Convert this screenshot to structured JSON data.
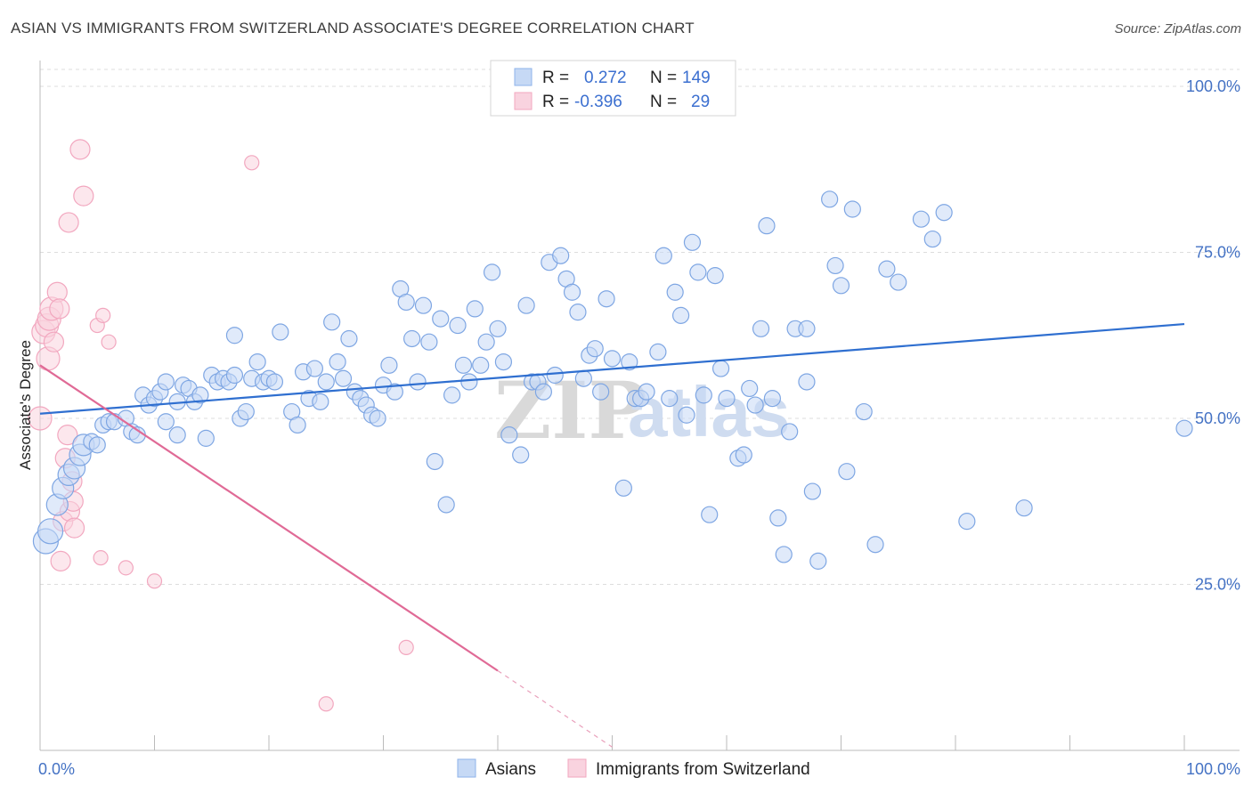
{
  "header": {
    "title": "ASIAN VS IMMIGRANTS FROM SWITZERLAND ASSOCIATE'S DEGREE CORRELATION CHART",
    "source": "Source: ZipAtlas.com"
  },
  "watermark": {
    "zip": "ZIP",
    "atlas": "atlas"
  },
  "legend_top": {
    "rows": [
      {
        "r_label": "R =",
        "r_value": "0.272",
        "n_label": "N =",
        "n_value": "149",
        "color": "#8fb3ea"
      },
      {
        "r_label": "R =",
        "r_value": "-0.396",
        "n_label": "N =",
        "n_value": "29",
        "color": "#f2a7bf"
      }
    ]
  },
  "legend_bottom": {
    "items": [
      {
        "label": "Asians",
        "color": "#8fb3ea"
      },
      {
        "label": "Immigrants from Switzerland",
        "color": "#f2a7bf"
      }
    ]
  },
  "chart_data": {
    "type": "scatter",
    "title": "ASIAN VS IMMIGRANTS FROM SWITZERLAND ASSOCIATE'S DEGREE CORRELATION CHART",
    "xlabel": "",
    "ylabel": "Associate's Degree",
    "xlim": [
      0,
      100
    ],
    "ylim": [
      0,
      100
    ],
    "x_tick_labels": [
      "0.0%",
      "100.0%"
    ],
    "y_tick_labels": [
      "25.0%",
      "50.0%",
      "75.0%",
      "100.0%"
    ],
    "y_ticks": [
      25,
      50,
      75,
      100
    ],
    "grid": true,
    "legend_position": "top-center",
    "series": [
      {
        "name": "Asians",
        "color": "#8fb3ea",
        "trend": {
          "x": [
            0,
            100
          ],
          "y": [
            50.7,
            64.2
          ]
        },
        "points": [
          [
            0.5,
            31.5
          ],
          [
            0.9,
            33
          ],
          [
            1.5,
            37
          ],
          [
            2,
            39.5
          ],
          [
            2.5,
            41.5
          ],
          [
            3,
            42.5
          ],
          [
            3.5,
            44.5
          ],
          [
            3.8,
            46
          ],
          [
            4.5,
            46.5
          ],
          [
            5,
            46
          ],
          [
            5.5,
            49
          ],
          [
            6,
            49.5
          ],
          [
            6.5,
            49.5
          ],
          [
            7.5,
            50
          ],
          [
            8,
            48
          ],
          [
            8.5,
            47.5
          ],
          [
            9,
            53.5
          ],
          [
            9.5,
            52
          ],
          [
            10,
            53
          ],
          [
            10.5,
            54
          ],
          [
            11,
            55.5
          ],
          [
            11,
            49.5
          ],
          [
            12,
            52.5
          ],
          [
            12,
            47.5
          ],
          [
            12.5,
            55
          ],
          [
            13,
            54.5
          ],
          [
            13.5,
            52.5
          ],
          [
            14,
            53.5
          ],
          [
            14.5,
            47
          ],
          [
            15,
            56.5
          ],
          [
            15.5,
            55.5
          ],
          [
            16,
            56
          ],
          [
            16.5,
            55.5
          ],
          [
            17,
            56.5
          ],
          [
            17,
            62.5
          ],
          [
            17.5,
            50
          ],
          [
            18,
            51
          ],
          [
            18.5,
            56
          ],
          [
            19,
            58.5
          ],
          [
            19.5,
            55.5
          ],
          [
            20,
            56
          ],
          [
            20.5,
            55.5
          ],
          [
            21,
            63
          ],
          [
            22,
            51
          ],
          [
            22.5,
            49
          ],
          [
            23,
            57
          ],
          [
            23.5,
            53
          ],
          [
            24,
            57.5
          ],
          [
            24.5,
            52.5
          ],
          [
            25,
            55.5
          ],
          [
            25.5,
            64.5
          ],
          [
            26,
            58.5
          ],
          [
            26.5,
            56
          ],
          [
            27,
            62
          ],
          [
            27.5,
            54
          ],
          [
            28,
            53
          ],
          [
            28.5,
            52
          ],
          [
            29,
            50.5
          ],
          [
            29.5,
            50
          ],
          [
            30,
            55
          ],
          [
            30.5,
            58
          ],
          [
            31,
            54
          ],
          [
            31.5,
            69.5
          ],
          [
            32,
            67.5
          ],
          [
            32.5,
            62
          ],
          [
            33,
            55.5
          ],
          [
            33.5,
            67
          ],
          [
            34,
            61.5
          ],
          [
            34.5,
            43.5
          ],
          [
            35,
            65
          ],
          [
            35.5,
            37
          ],
          [
            36,
            53.5
          ],
          [
            36.5,
            64
          ],
          [
            37,
            58
          ],
          [
            37.5,
            55.5
          ],
          [
            38,
            66.5
          ],
          [
            38.5,
            58
          ],
          [
            39,
            61.5
          ],
          [
            39.5,
            72
          ],
          [
            40,
            63.5
          ],
          [
            40.5,
            58.5
          ],
          [
            41,
            47.5
          ],
          [
            42,
            44.5
          ],
          [
            42.5,
            67
          ],
          [
            43,
            55.5
          ],
          [
            43.5,
            55.5
          ],
          [
            44,
            54
          ],
          [
            44.5,
            73.5
          ],
          [
            45,
            56.5
          ],
          [
            45.5,
            74.5
          ],
          [
            46,
            71
          ],
          [
            46.5,
            69
          ],
          [
            47,
            66
          ],
          [
            47.5,
            56
          ],
          [
            48,
            59.5
          ],
          [
            48.5,
            60.5
          ],
          [
            49,
            54
          ],
          [
            49.5,
            68
          ],
          [
            50,
            59
          ],
          [
            51,
            39.5
          ],
          [
            51.5,
            58.5
          ],
          [
            52,
            53
          ],
          [
            52.5,
            53
          ],
          [
            53,
            54
          ],
          [
            54,
            60
          ],
          [
            54.5,
            74.5
          ],
          [
            55,
            53
          ],
          [
            55.5,
            69
          ],
          [
            56,
            65.5
          ],
          [
            56.5,
            50.5
          ],
          [
            57,
            76.5
          ],
          [
            57.5,
            72
          ],
          [
            58,
            53.5
          ],
          [
            58.5,
            35.5
          ],
          [
            59,
            71.5
          ],
          [
            59.5,
            57.5
          ],
          [
            60,
            53
          ],
          [
            61,
            44
          ],
          [
            61.5,
            44.5
          ],
          [
            62,
            54.5
          ],
          [
            62.5,
            52
          ],
          [
            63,
            63.5
          ],
          [
            63.5,
            79
          ],
          [
            64,
            53
          ],
          [
            64.5,
            35
          ],
          [
            65,
            29.5
          ],
          [
            65.5,
            48
          ],
          [
            66,
            63.5
          ],
          [
            67,
            55.5
          ],
          [
            67,
            63.5
          ],
          [
            67.5,
            39
          ],
          [
            68,
            28.5
          ],
          [
            69,
            83
          ],
          [
            69.5,
            73
          ],
          [
            70,
            70
          ],
          [
            70.5,
            42
          ],
          [
            71,
            81.5
          ],
          [
            72,
            51
          ],
          [
            73,
            31
          ],
          [
            74,
            72.5
          ],
          [
            75,
            70.5
          ],
          [
            77,
            80
          ],
          [
            78,
            77
          ],
          [
            79,
            81
          ],
          [
            81,
            34.5
          ],
          [
            86,
            36.5
          ],
          [
            100,
            48.5
          ]
        ]
      },
      {
        "name": "Immigrants from Switzerland",
        "color": "#f2a7bf",
        "trend": {
          "x": [
            0,
            40
          ],
          "y": [
            58,
            12
          ]
        },
        "trend_extension": {
          "x": [
            40,
            50
          ],
          "y": [
            12,
            0.5
          ]
        },
        "points": [
          [
            0,
            50
          ],
          [
            0.3,
            63
          ],
          [
            0.6,
            64
          ],
          [
            0.7,
            59
          ],
          [
            0.8,
            65
          ],
          [
            1,
            66.5
          ],
          [
            1.2,
            61.5
          ],
          [
            1.5,
            69
          ],
          [
            1.7,
            66.5
          ],
          [
            1.8,
            28.5
          ],
          [
            2,
            34.5
          ],
          [
            2.2,
            44
          ],
          [
            2.4,
            47.5
          ],
          [
            2.5,
            79.5
          ],
          [
            2.6,
            36
          ],
          [
            2.8,
            40.5
          ],
          [
            2.9,
            37.5
          ],
          [
            3,
            33.5
          ],
          [
            3.5,
            90.5
          ],
          [
            3.8,
            83.5
          ],
          [
            5,
            64
          ],
          [
            5.3,
            29
          ],
          [
            5.5,
            65.5
          ],
          [
            6,
            61.5
          ],
          [
            7.5,
            27.5
          ],
          [
            10,
            25.5
          ],
          [
            18.5,
            88.5
          ],
          [
            25,
            7
          ],
          [
            32,
            15.5
          ]
        ]
      }
    ]
  }
}
